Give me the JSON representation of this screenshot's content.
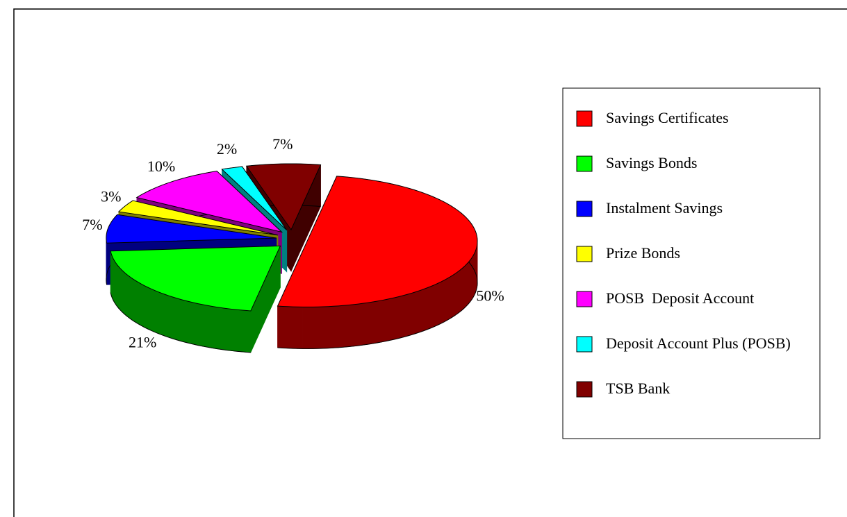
{
  "chart_data": {
    "type": "pie",
    "categories": [
      "Savings Certificates",
      "Savings Bonds",
      "Instalment Savings",
      "Prize Bonds",
      "POSB  Deposit Account",
      "Deposit Account Plus (POSB)",
      "TSB Bank"
    ],
    "values": [
      50,
      21,
      7,
      3,
      10,
      2,
      7
    ],
    "value_labels": [
      "50%",
      "21%",
      "7%",
      "3%",
      "10%",
      "2%",
      "7%"
    ],
    "colors": [
      "#ff0000",
      "#00ff00",
      "#0000ff",
      "#ffff00",
      "#ff00ff",
      "#00ffff",
      "#800000"
    ],
    "legend": "right"
  }
}
